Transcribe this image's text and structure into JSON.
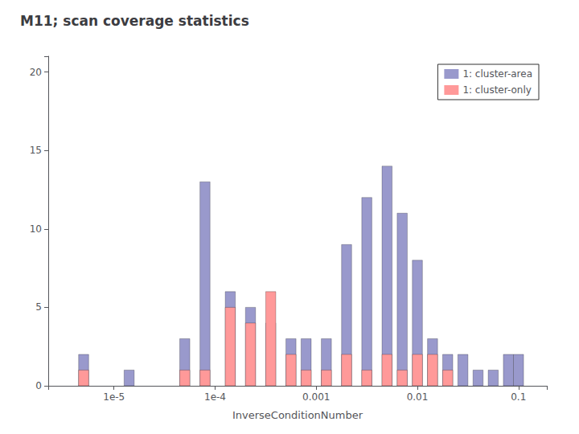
{
  "chart_data": {
    "type": "bar",
    "title": "M11; scan coverage statistics",
    "xlabel": "InverseConditionNumber",
    "x": [
      5.01187e-06,
      1.41254e-05,
      5.01187e-05,
      7.94328e-05,
      0.000141254,
      0.000223872,
      0.000354813,
      0.000562341,
      0.000794328,
      0.00125893,
      0.00199526,
      0.00316228,
      0.00501187,
      0.00707946,
      0.01,
      0.0141254,
      0.0199526,
      0.0281838,
      0.0398107,
      0.0562341,
      0.0794328,
      0.1
    ],
    "series": [
      {
        "name": "1: cluster-area",
        "color": "#9999cc",
        "values": [
          2,
          1,
          3,
          13,
          6,
          5,
          4,
          3,
          3,
          3,
          9,
          12,
          14,
          11,
          8,
          3,
          2,
          2,
          1,
          1,
          2,
          2
        ]
      },
      {
        "name": "1: cluster-only",
        "color": "#ff9999",
        "values": [
          1,
          0,
          1,
          1,
          5,
          4,
          6,
          2,
          1,
          1,
          2,
          1,
          2,
          1,
          2,
          2,
          1,
          0,
          0,
          0,
          0,
          0
        ]
      }
    ],
    "log": "x",
    "xlim": [
      2.23872e-06,
      0.190546
    ],
    "xticks": [
      {
        "value": 1e-05,
        "label": "1e-5"
      },
      {
        "value": 0.0001,
        "label": "1e-4"
      },
      0.001,
      0.01,
      0.1
    ],
    "ylim": [
      0,
      21
    ],
    "yticks": [
      0,
      5,
      10,
      15,
      20
    ],
    "legend": "upper right",
    "grid": false
  }
}
